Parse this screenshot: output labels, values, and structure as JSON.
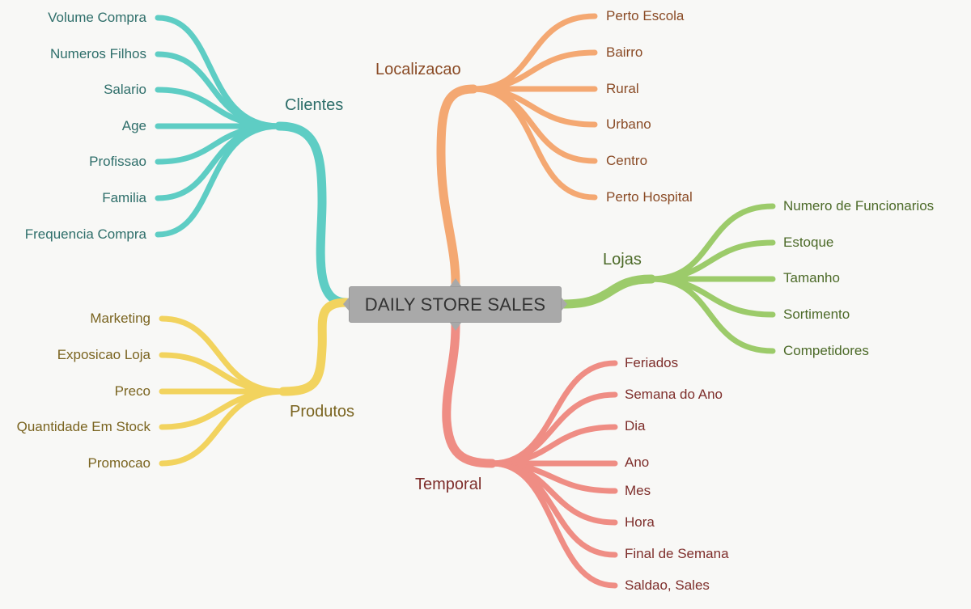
{
  "center": {
    "label": "DAILY STORE SALES"
  },
  "colors": {
    "clientes": "#5ecdc4",
    "clientes_text": "#2e6e6a",
    "localizacao": "#f4a872",
    "localizacao_text": "#8a4b26",
    "lojas": "#9ccb6a",
    "lojas_text": "#4c6a28",
    "produtos": "#f2d35e",
    "produtos_text": "#7a6420",
    "temporal": "#ef8d84",
    "temporal_text": "#7e2e2b"
  },
  "branches": {
    "clientes": {
      "label": "Clientes",
      "children": [
        "Volume Compra",
        "Numeros Filhos",
        "Salario",
        "Age",
        "Profissao",
        "Familia",
        "Frequencia Compra"
      ]
    },
    "produtos": {
      "label": "Produtos",
      "children": [
        "Marketing",
        "Exposicao Loja",
        "Preco",
        "Quantidade Em Stock",
        "Promocao"
      ]
    },
    "localizacao": {
      "label": "Localizacao",
      "children": [
        "Perto Escola",
        "Bairro",
        "Rural",
        "Urbano",
        "Centro",
        "Perto Hospital"
      ]
    },
    "lojas": {
      "label": "Lojas",
      "children": [
        "Numero de Funcionarios",
        "Estoque",
        "Tamanho",
        "Sortimento",
        "Competidores"
      ]
    },
    "temporal": {
      "label": "Temporal",
      "children": [
        "Feriados",
        "Semana do Ano",
        "Dia",
        "Ano",
        "Mes",
        "Hora",
        "Final de Semana",
        "Saldao, Sales"
      ]
    }
  }
}
